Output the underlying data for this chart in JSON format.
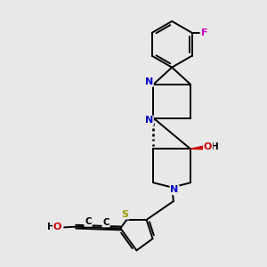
{
  "background_color": "#e8e8e8",
  "figsize": [
    3.0,
    3.0
  ],
  "dpi": 100,
  "atom_colors": {
    "N": "#0000cc",
    "O": "#cc0000",
    "S": "#999900",
    "F": "#cc00cc",
    "C": "#000000",
    "H": "#000000"
  },
  "bond_color": "#000000",
  "bond_width": 1.4
}
